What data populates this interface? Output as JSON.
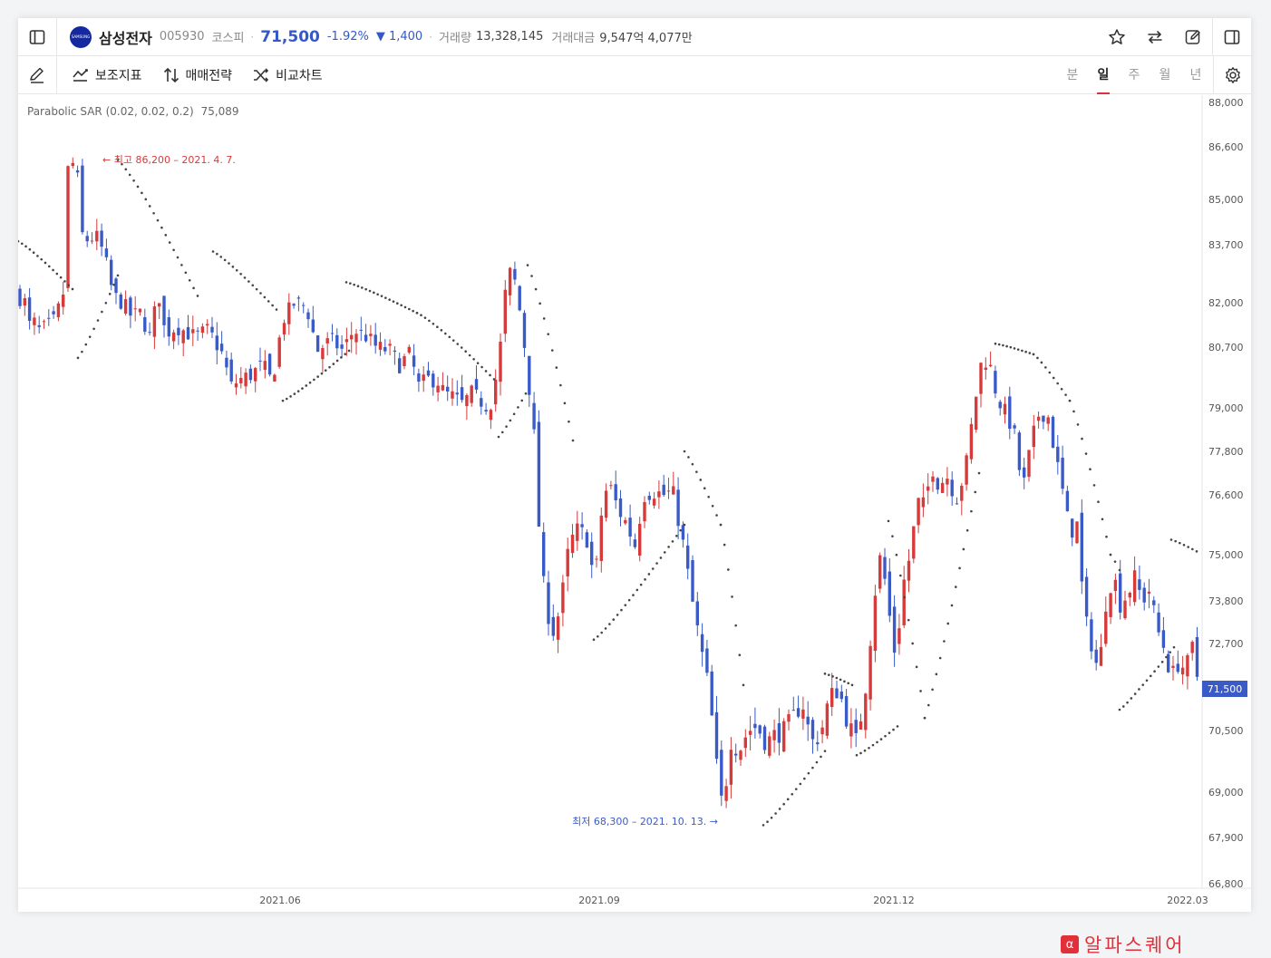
{
  "header": {
    "logo_text": "SAMSUNG",
    "stock_name": "삼성전자",
    "stock_code": "005930",
    "market": "코스피",
    "price": "71,500",
    "change_pct": "-1.92%",
    "change_amt": "▼ 1,400",
    "volume_label": "거래량",
    "volume_value": "13,328,145",
    "amount_label": "거래대금",
    "amount_value": "9,547억 4,077만"
  },
  "toolbar": {
    "indicators_label": "보조지표",
    "strategy_label": "매매전략",
    "compare_label": "비교차트",
    "periods": [
      "분",
      "일",
      "주",
      "월",
      "년"
    ],
    "active_period": "일"
  },
  "indicator": {
    "label": "Parabolic SAR (0.02, 0.02, 0.2)",
    "value": "75,089"
  },
  "watermark": {
    "icon": "α",
    "text": "알파스퀘어"
  },
  "colors": {
    "up": "#d63a3a",
    "down": "#3a5bc7",
    "sar": "#444444",
    "accent": "#e0303a",
    "price_tag": "#3a5bc7"
  },
  "chart_data": {
    "type": "candlestick",
    "y_ticks": [
      "88,000",
      "86,600",
      "85,000",
      "83,700",
      "82,000",
      "80,700",
      "79,000",
      "77,800",
      "76,600",
      "75,000",
      "73,800",
      "72,700",
      "71,500",
      "70,500",
      "69,000",
      "67,900",
      "66,800"
    ],
    "x_ticks": [
      "2021.06",
      "2021.09",
      "2021.12",
      "2022.03"
    ],
    "last_price_label": "71,500",
    "high_annotation": "← 최고 86,200 – 2021. 4. 7.",
    "low_annotation": "최저 68,300 – 2021. 10. 13. →",
    "indicator": "Parabolic SAR",
    "sar_last": 75089
  }
}
